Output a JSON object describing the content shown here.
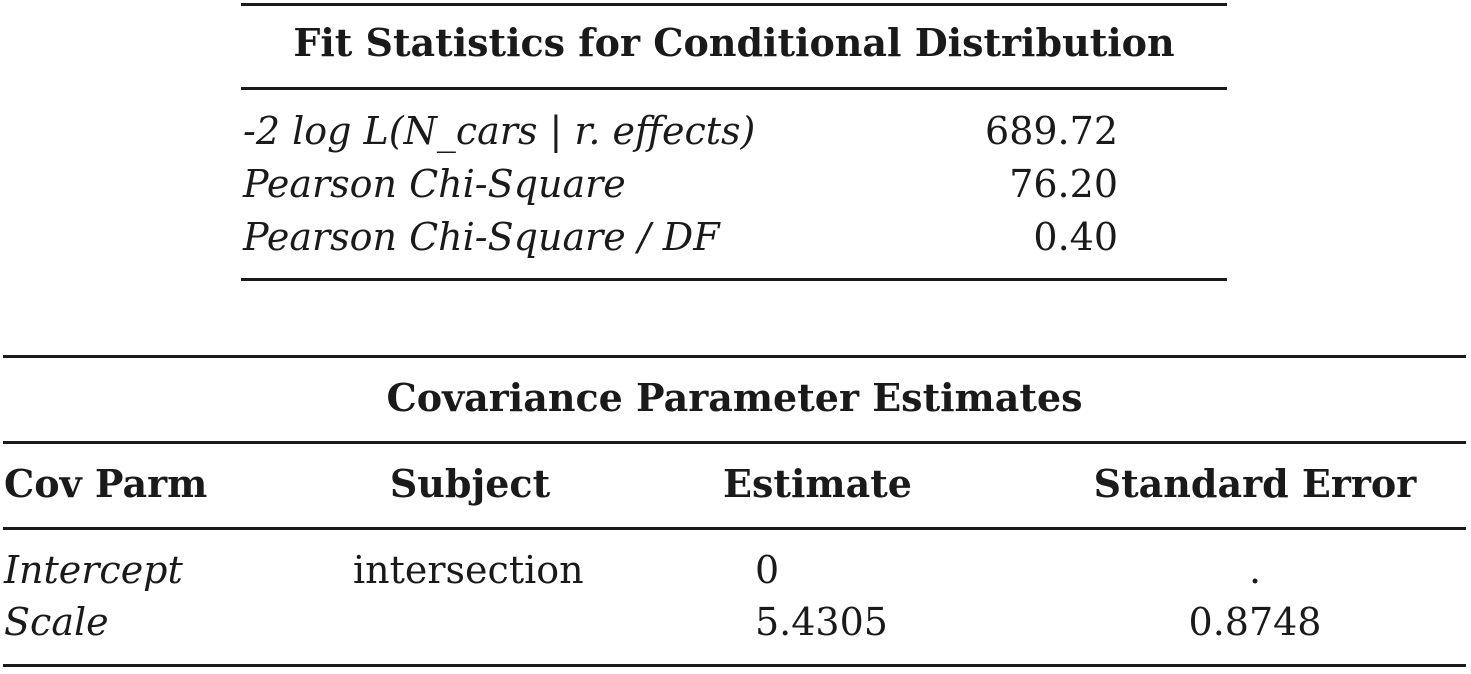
{
  "fit_table": {
    "title": "Fit Statistics for Conditional Distribution",
    "rows": [
      {
        "label": "-2 log L(N_cars | r. effects)",
        "value": "689.72"
      },
      {
        "label": "Pearson Chi-Square",
        "value": "76.20"
      },
      {
        "label": "Pearson Chi-Square / DF",
        "value": "0.40"
      }
    ]
  },
  "cov_table": {
    "title": "Covariance Parameter Estimates",
    "headers": [
      "Cov Parm",
      "Subject",
      "Estimate",
      "Standard Error"
    ],
    "rows": [
      {
        "cov_parm": "Intercept",
        "subject": "intersection",
        "estimate": "0",
        "std_error": "."
      },
      {
        "cov_parm": "Scale",
        "subject": "",
        "estimate": "5.4305",
        "std_error": "0.8748"
      }
    ]
  }
}
